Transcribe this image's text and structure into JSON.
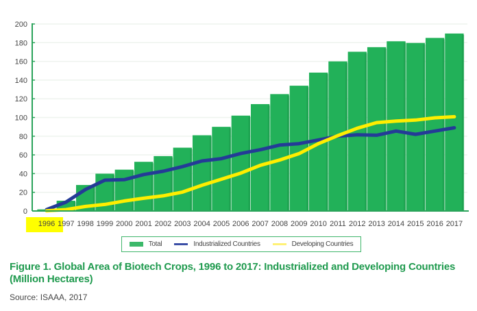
{
  "chart_data": {
    "type": "bar",
    "title": "Figure 1. Global Area of Biotech Crops, 1996 to 2017: Industrialized and Developing Countries (Million Hectares)",
    "source": "Source: ISAAA, 2017",
    "xlabel": "",
    "ylabel": "",
    "ylim": [
      0,
      200
    ],
    "yticks": [
      "0",
      "20",
      "40",
      "60",
      "80",
      "100",
      "120",
      "140",
      "160",
      "180",
      "200"
    ],
    "grid": true,
    "legend_position": "bottom-center",
    "categories": [
      "1996",
      "1997",
      "1998",
      "1999",
      "2000",
      "2001",
      "2002",
      "2003",
      "2004",
      "2005",
      "2006",
      "2007",
      "2008",
      "2009",
      "2010",
      "2011",
      "2012",
      "2013",
      "2014",
      "2015",
      "2016",
      "2017"
    ],
    "highlighted_category": "1996",
    "series": [
      {
        "name": "Total",
        "kind": "bar",
        "color": "#22b159",
        "values": [
          1.7,
          11,
          27.8,
          39.9,
          44.2,
          52.6,
          58.7,
          67.7,
          81,
          90,
          102,
          114.3,
          125,
          134,
          148,
          160,
          170.3,
          175.2,
          181.5,
          179.7,
          185.1,
          189.8
        ]
      },
      {
        "name": "Industrialized Countries",
        "kind": "line",
        "color": "#243b97",
        "values": [
          1.5,
          9.5,
          23,
          33,
          33.5,
          39,
          42.5,
          47.5,
          53.5,
          56,
          61.5,
          65.5,
          70.5,
          72,
          76,
          80,
          81.5,
          81,
          85.5,
          82,
          85.5,
          89
        ]
      },
      {
        "name": "Developing Countries",
        "kind": "line",
        "color": "#ffee00",
        "values": [
          0.2,
          1.5,
          4.8,
          7,
          10.7,
          13.6,
          16.2,
          20.2,
          27.5,
          34,
          40.5,
          48.8,
          54.5,
          61.3,
          72,
          80.6,
          88.5,
          94.5,
          96.2,
          97.2,
          99.6,
          100.8
        ]
      }
    ]
  }
}
